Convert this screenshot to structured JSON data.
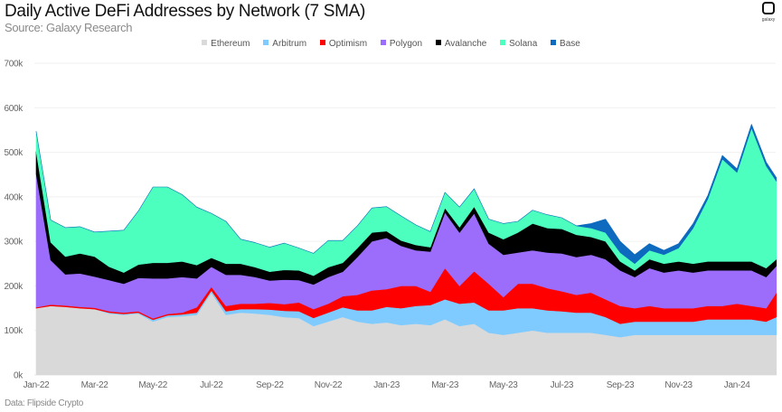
{
  "header": {
    "title": "Daily Active DeFi Addresses by Network (7 SMA)",
    "subtitle": "Source: Galaxy Research",
    "logo_text": "galaxy"
  },
  "footer": {
    "source": "Data: Flipside Crypto"
  },
  "chart_data": {
    "type": "area",
    "stacked": true,
    "title": "Daily Active DeFi Addresses by Network (7 SMA)",
    "subtitle": "Source: Galaxy Research",
    "xlabel": "",
    "ylabel": "",
    "ylim": [
      0,
      700000
    ],
    "yticks": [
      0,
      100000,
      200000,
      300000,
      400000,
      500000,
      600000,
      700000
    ],
    "ytick_labels": [
      "0k",
      "100k",
      "200k",
      "300k",
      "400k",
      "500k",
      "600k",
      "700k"
    ],
    "xtick_labels": [
      "Jan-22",
      "Mar-22",
      "May-22",
      "Jul-22",
      "Sep-22",
      "Nov-22",
      "Jan-23",
      "Mar-23",
      "May-23",
      "Jul-23",
      "Sep-23",
      "Nov-23",
      "Jan-24"
    ],
    "xtick_months": [
      0,
      2,
      4,
      6,
      8,
      10,
      12,
      14,
      16,
      18,
      20,
      22,
      24
    ],
    "x_unit": "months since Jan-22",
    "xlim": [
      0,
      25.35
    ],
    "grid": true,
    "legend_position": "top-center",
    "x": [
      0,
      0.5,
      1,
      1.5,
      2,
      2.5,
      3,
      3.5,
      4,
      4.5,
      5,
      5.5,
      6,
      6.5,
      7,
      7.5,
      8,
      8.5,
      9,
      9.5,
      10,
      10.5,
      11,
      11.5,
      12,
      12.5,
      13,
      13.5,
      14,
      14.5,
      15,
      15.5,
      16,
      16.5,
      17,
      17.5,
      18,
      18.5,
      19,
      19.5,
      20,
      20.5,
      21,
      21.5,
      22,
      22.5,
      23,
      23.5,
      24,
      24.5,
      25,
      25.35
    ],
    "series": [
      {
        "name": "Ethereum",
        "color": "#d9d9d9",
        "values": [
          150000,
          155000,
          153000,
          150000,
          148000,
          138000,
          135000,
          138000,
          120000,
          130000,
          132000,
          135000,
          185000,
          135000,
          140000,
          138000,
          135000,
          130000,
          128000,
          110000,
          120000,
          130000,
          120000,
          115000,
          118000,
          112000,
          115000,
          112000,
          125000,
          110000,
          115000,
          95000,
          90000,
          95000,
          100000,
          95000,
          95000,
          95000,
          95000,
          90000,
          85000,
          90000,
          90000,
          90000,
          90000,
          90000,
          90000,
          90000,
          90000,
          90000,
          90000,
          90000
        ]
      },
      {
        "name": "Arbitrum",
        "color": "#7fcbff",
        "values": [
          0,
          0,
          0,
          0,
          0,
          2000,
          2000,
          2000,
          4000,
          4000,
          4000,
          5000,
          5000,
          8000,
          8000,
          10000,
          12000,
          14000,
          15000,
          18000,
          20000,
          22000,
          25000,
          30000,
          35000,
          38000,
          40000,
          45000,
          45000,
          50000,
          48000,
          50000,
          55000,
          55000,
          50000,
          50000,
          48000,
          45000,
          45000,
          40000,
          30000,
          30000,
          30000,
          30000,
          30000,
          30000,
          35000,
          35000,
          35000,
          35000,
          30000,
          40000
        ]
      },
      {
        "name": "Optimism",
        "color": "#ff0000",
        "values": [
          2000,
          3000,
          3000,
          3000,
          3000,
          3000,
          3000,
          3000,
          3000,
          3000,
          4000,
          12000,
          8000,
          12000,
          12000,
          12000,
          15000,
          15000,
          20000,
          20000,
          20000,
          25000,
          35000,
          45000,
          40000,
          50000,
          45000,
          30000,
          70000,
          40000,
          70000,
          60000,
          30000,
          55000,
          55000,
          50000,
          45000,
          40000,
          45000,
          40000,
          40000,
          30000,
          35000,
          30000,
          30000,
          30000,
          30000,
          30000,
          35000,
          30000,
          30000,
          55000
        ]
      },
      {
        "name": "Polygon",
        "color": "#9b6dfa",
        "values": [
          300000,
          100000,
          70000,
          75000,
          70000,
          70000,
          65000,
          75000,
          90000,
          80000,
          80000,
          65000,
          45000,
          70000,
          65000,
          60000,
          50000,
          55000,
          50000,
          55000,
          60000,
          55000,
          85000,
          110000,
          115000,
          90000,
          80000,
          90000,
          125000,
          120000,
          130000,
          90000,
          95000,
          70000,
          75000,
          80000,
          85000,
          85000,
          85000,
          90000,
          80000,
          70000,
          85000,
          80000,
          85000,
          80000,
          80000,
          80000,
          75000,
          80000,
          70000,
          60000
        ]
      },
      {
        "name": "Avalanche",
        "color": "#000000",
        "values": [
          50000,
          40000,
          40000,
          45000,
          45000,
          30000,
          25000,
          30000,
          35000,
          35000,
          35000,
          30000,
          20000,
          25000,
          25000,
          22000,
          20000,
          22000,
          22000,
          20000,
          22000,
          20000,
          20000,
          20000,
          15000,
          12000,
          12000,
          10000,
          10000,
          12000,
          15000,
          25000,
          35000,
          45000,
          60000,
          55000,
          55000,
          50000,
          40000,
          40000,
          20000,
          15000,
          20000,
          20000,
          20000,
          20000,
          20000,
          20000,
          20000,
          20000,
          20000,
          15000
        ]
      },
      {
        "name": "Solana",
        "color": "#4dffbe",
        "values": [
          45000,
          50000,
          65000,
          60000,
          55000,
          80000,
          95000,
          120000,
          170000,
          170000,
          150000,
          130000,
          100000,
          95000,
          55000,
          55000,
          55000,
          60000,
          50000,
          50000,
          60000,
          50000,
          50000,
          55000,
          55000,
          55000,
          45000,
          35000,
          35000,
          45000,
          40000,
          30000,
          35000,
          25000,
          30000,
          30000,
          25000,
          20000,
          20000,
          20000,
          20000,
          15000,
          20000,
          20000,
          30000,
          80000,
          140000,
          230000,
          200000,
          300000,
          230000,
          175000
        ]
      },
      {
        "name": "Base",
        "color": "#0d6abf",
        "values": [
          0,
          0,
          0,
          0,
          0,
          0,
          0,
          0,
          0,
          0,
          0,
          0,
          0,
          0,
          0,
          0,
          0,
          0,
          0,
          0,
          0,
          0,
          0,
          0,
          0,
          0,
          0,
          0,
          0,
          0,
          0,
          0,
          0,
          0,
          0,
          0,
          0,
          0,
          10000,
          30000,
          25000,
          20000,
          15000,
          10000,
          10000,
          10000,
          8000,
          8000,
          8000,
          8000,
          8000,
          8000
        ]
      }
    ]
  }
}
